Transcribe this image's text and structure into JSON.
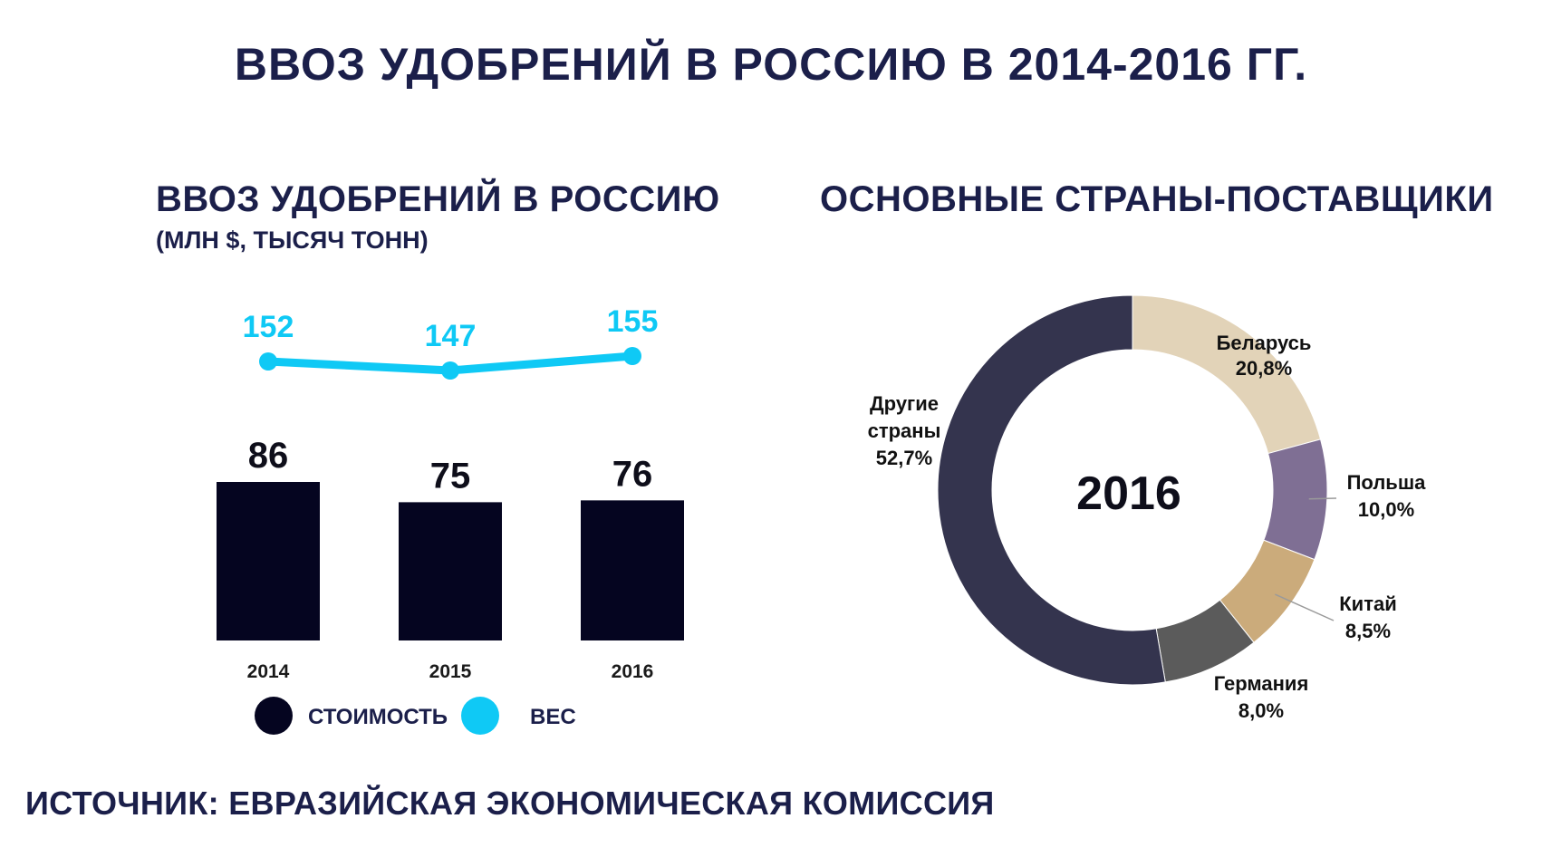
{
  "header": {
    "title": "ВВОЗ УДОБРЕНИЙ В РОССИЮ В 2014-2016 ГГ."
  },
  "left": {
    "title": "ВВОЗ УДОБРЕНИЙ В РОССИЮ",
    "subtitle": "(МЛН $, ТЫСЯЧ ТОНН)"
  },
  "right": {
    "title": "ОСНОВНЫЕ СТРАНЫ-ПОСТАВЩИКИ"
  },
  "footer": {
    "source": "ИСТОЧНИК: ЕВРАЗИЙСКАЯ ЭКОНОМИЧЕСКАЯ КОМИССИЯ"
  },
  "colors": {
    "bar": "#050520",
    "line": "#0fc9f5"
  },
  "chart_data": [
    {
      "type": "bar",
      "categories": [
        "2014",
        "2015",
        "2016"
      ],
      "series": [
        {
          "name": "СТОИМОСТЬ",
          "values": [
            86,
            75,
            76
          ],
          "labels": [
            "86",
            "75",
            "76"
          ],
          "color": "#050520"
        },
        {
          "name": "ВЕС",
          "values": [
            152,
            147,
            155
          ],
          "labels": [
            "152",
            "147",
            "155"
          ],
          "color": "#0fc9f5",
          "render": "line"
        }
      ],
      "legend": [
        {
          "label": "СТОИМОСТЬ",
          "color": "#050520"
        },
        {
          "label": "ВЕС",
          "color": "#0fc9f5"
        }
      ],
      "title": "ВВОЗ УДОБРЕНИЙ В РОССИЮ",
      "xlabel": "",
      "ylabel": ""
    },
    {
      "type": "pie",
      "center_label": "2016",
      "slices": [
        {
          "name": "Беларусь",
          "value": 20.8,
          "percent_label": "20,8%",
          "color": "#e2d3b8"
        },
        {
          "name": "Польша",
          "value": 10.0,
          "percent_label": "10,0%",
          "color": "#7f6f94"
        },
        {
          "name": "Китай",
          "value": 8.5,
          "percent_label": "8,5%",
          "color": "#cbab7b"
        },
        {
          "name": "Германия",
          "value": 8.0,
          "percent_label": "8,0%",
          "color": "#5b5b5b"
        },
        {
          "name": "Другие страны",
          "name_lines": [
            "Другие",
            "страны"
          ],
          "value": 52.7,
          "percent_label": "52,7%",
          "color": "#34344e"
        }
      ],
      "title": "ОСНОВНЫЕ СТРАНЫ-ПОСТАВЩИКИ"
    }
  ]
}
